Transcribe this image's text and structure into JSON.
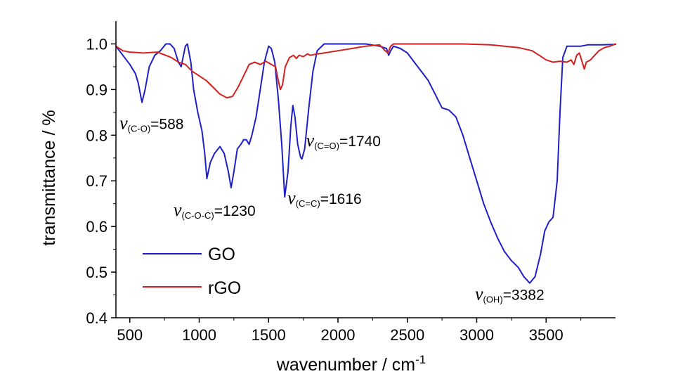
{
  "chart_data": {
    "type": "line",
    "xlabel": "wavenumber / cm",
    "xlabel_sup": "-1",
    "ylabel": "transmittance / %",
    "xlim": [
      400,
      4000
    ],
    "ylim": [
      0.4,
      1.05
    ],
    "x_ticks": [
      500,
      1000,
      1500,
      2000,
      2500,
      3000,
      3500
    ],
    "x_tick_labels": [
      "500",
      "1000",
      "1500",
      "2000",
      "2500",
      "3000",
      "3500"
    ],
    "y_ticks": [
      0.4,
      0.5,
      0.6,
      0.7,
      0.8,
      0.9,
      1.0
    ],
    "y_tick_labels": [
      "0.4",
      "0.5",
      "0.6",
      "0.7",
      "0.8",
      "0.9",
      "1.0"
    ],
    "legend": "left-bottom",
    "series": [
      {
        "name": "GO",
        "color": "#1f1fc8",
        "points": [
          [
            400,
            0.995
          ],
          [
            450,
            0.975
          ],
          [
            500,
            0.955
          ],
          [
            540,
            0.935
          ],
          [
            560,
            0.915
          ],
          [
            588,
            0.872
          ],
          [
            610,
            0.9
          ],
          [
            640,
            0.95
          ],
          [
            680,
            0.975
          ],
          [
            720,
            0.985
          ],
          [
            760,
            1.0
          ],
          [
            790,
            1.0
          ],
          [
            820,
            0.99
          ],
          [
            850,
            0.96
          ],
          [
            870,
            0.95
          ],
          [
            900,
            0.995
          ],
          [
            915,
            1.0
          ],
          [
            940,
            0.96
          ],
          [
            960,
            0.9
          ],
          [
            990,
            0.85
          ],
          [
            1020,
            0.81
          ],
          [
            1040,
            0.76
          ],
          [
            1055,
            0.705
          ],
          [
            1080,
            0.74
          ],
          [
            1110,
            0.76
          ],
          [
            1150,
            0.775
          ],
          [
            1180,
            0.76
          ],
          [
            1210,
            0.72
          ],
          [
            1230,
            0.685
          ],
          [
            1250,
            0.72
          ],
          [
            1275,
            0.77
          ],
          [
            1300,
            0.78
          ],
          [
            1320,
            0.79
          ],
          [
            1340,
            0.79
          ],
          [
            1360,
            0.78
          ],
          [
            1380,
            0.8
          ],
          [
            1410,
            0.84
          ],
          [
            1440,
            0.9
          ],
          [
            1470,
            0.96
          ],
          [
            1500,
            0.995
          ],
          [
            1520,
            0.99
          ],
          [
            1545,
            0.96
          ],
          [
            1570,
            0.88
          ],
          [
            1595,
            0.78
          ],
          [
            1616,
            0.665
          ],
          [
            1640,
            0.72
          ],
          [
            1660,
            0.82
          ],
          [
            1675,
            0.865
          ],
          [
            1690,
            0.84
          ],
          [
            1710,
            0.78
          ],
          [
            1730,
            0.752
          ],
          [
            1740,
            0.748
          ],
          [
            1760,
            0.77
          ],
          [
            1790,
            0.86
          ],
          [
            1820,
            0.94
          ],
          [
            1850,
            0.985
          ],
          [
            1900,
            1.0
          ],
          [
            2000,
            1.0
          ],
          [
            2100,
            1.0
          ],
          [
            2200,
            1.0
          ],
          [
            2300,
            0.995
          ],
          [
            2350,
            0.99
          ],
          [
            2365,
            0.975
          ],
          [
            2380,
            0.985
          ],
          [
            2400,
            0.995
          ],
          [
            2450,
            0.99
          ],
          [
            2500,
            0.98
          ],
          [
            2550,
            0.96
          ],
          [
            2600,
            0.94
          ],
          [
            2650,
            0.92
          ],
          [
            2700,
            0.89
          ],
          [
            2750,
            0.86
          ],
          [
            2800,
            0.855
          ],
          [
            2850,
            0.84
          ],
          [
            2900,
            0.8
          ],
          [
            2950,
            0.75
          ],
          [
            3000,
            0.7
          ],
          [
            3050,
            0.65
          ],
          [
            3100,
            0.61
          ],
          [
            3150,
            0.575
          ],
          [
            3200,
            0.545
          ],
          [
            3250,
            0.525
          ],
          [
            3300,
            0.51
          ],
          [
            3340,
            0.49
          ],
          [
            3382,
            0.476
          ],
          [
            3420,
            0.49
          ],
          [
            3460,
            0.54
          ],
          [
            3490,
            0.59
          ],
          [
            3520,
            0.61
          ],
          [
            3550,
            0.62
          ],
          [
            3580,
            0.7
          ],
          [
            3600,
            0.85
          ],
          [
            3620,
            0.97
          ],
          [
            3650,
            0.995
          ],
          [
            3700,
            0.995
          ],
          [
            3750,
            0.995
          ],
          [
            3800,
            0.998
          ],
          [
            3900,
            0.998
          ],
          [
            4000,
            0.999
          ]
        ]
      },
      {
        "name": "rGO",
        "color": "#d42020",
        "points": [
          [
            400,
            0.995
          ],
          [
            450,
            0.985
          ],
          [
            500,
            0.982
          ],
          [
            600,
            0.98
          ],
          [
            700,
            0.982
          ],
          [
            800,
            0.97
          ],
          [
            850,
            0.96
          ],
          [
            900,
            0.955
          ],
          [
            950,
            0.94
          ],
          [
            1000,
            0.93
          ],
          [
            1050,
            0.92
          ],
          [
            1100,
            0.905
          ],
          [
            1150,
            0.89
          ],
          [
            1200,
            0.882
          ],
          [
            1240,
            0.885
          ],
          [
            1280,
            0.905
          ],
          [
            1320,
            0.93
          ],
          [
            1360,
            0.955
          ],
          [
            1400,
            0.96
          ],
          [
            1440,
            0.955
          ],
          [
            1480,
            0.962
          ],
          [
            1520,
            0.955
          ],
          [
            1550,
            0.95
          ],
          [
            1570,
            0.92
          ],
          [
            1585,
            0.9
          ],
          [
            1600,
            0.91
          ],
          [
            1620,
            0.95
          ],
          [
            1650,
            0.97
          ],
          [
            1680,
            0.975
          ],
          [
            1700,
            0.968
          ],
          [
            1720,
            0.975
          ],
          [
            1750,
            0.972
          ],
          [
            1780,
            0.978
          ],
          [
            1800,
            0.975
          ],
          [
            1850,
            0.978
          ],
          [
            1900,
            0.98
          ],
          [
            2000,
            0.985
          ],
          [
            2100,
            0.99
          ],
          [
            2200,
            0.995
          ],
          [
            2300,
            0.998
          ],
          [
            2340,
            0.985
          ],
          [
            2360,
            0.98
          ],
          [
            2380,
            0.995
          ],
          [
            2400,
            1.0
          ],
          [
            2500,
            1.0
          ],
          [
            2700,
            1.0
          ],
          [
            2900,
            1.0
          ],
          [
            3100,
            0.998
          ],
          [
            3200,
            0.995
          ],
          [
            3300,
            0.992
          ],
          [
            3400,
            0.985
          ],
          [
            3450,
            0.975
          ],
          [
            3500,
            0.965
          ],
          [
            3550,
            0.96
          ],
          [
            3600,
            0.962
          ],
          [
            3650,
            0.96
          ],
          [
            3680,
            0.965
          ],
          [
            3700,
            0.955
          ],
          [
            3720,
            0.975
          ],
          [
            3740,
            0.98
          ],
          [
            3760,
            0.96
          ],
          [
            3775,
            0.945
          ],
          [
            3790,
            0.96
          ],
          [
            3820,
            0.965
          ],
          [
            3850,
            0.975
          ],
          [
            3880,
            0.985
          ],
          [
            3920,
            0.992
          ],
          [
            3960,
            0.995
          ],
          [
            4000,
            1.0
          ]
        ]
      }
    ],
    "annotations": [
      {
        "label": "(C-O)",
        "value": "=588",
        "x": 588,
        "y": 0.872
      },
      {
        "label": "(C-O-C)",
        "value": "=1230",
        "x": 1230,
        "y": 0.685
      },
      {
        "label": "(C=C)",
        "value": "=1616",
        "x": 1616,
        "y": 0.665
      },
      {
        "label": "(C=O)",
        "value": "=1740",
        "x": 1740,
        "y": 0.748
      },
      {
        "label": "(OH)",
        "value": "=3382",
        "x": 3382,
        "y": 0.476
      }
    ],
    "annotation_symbol": "ν"
  }
}
